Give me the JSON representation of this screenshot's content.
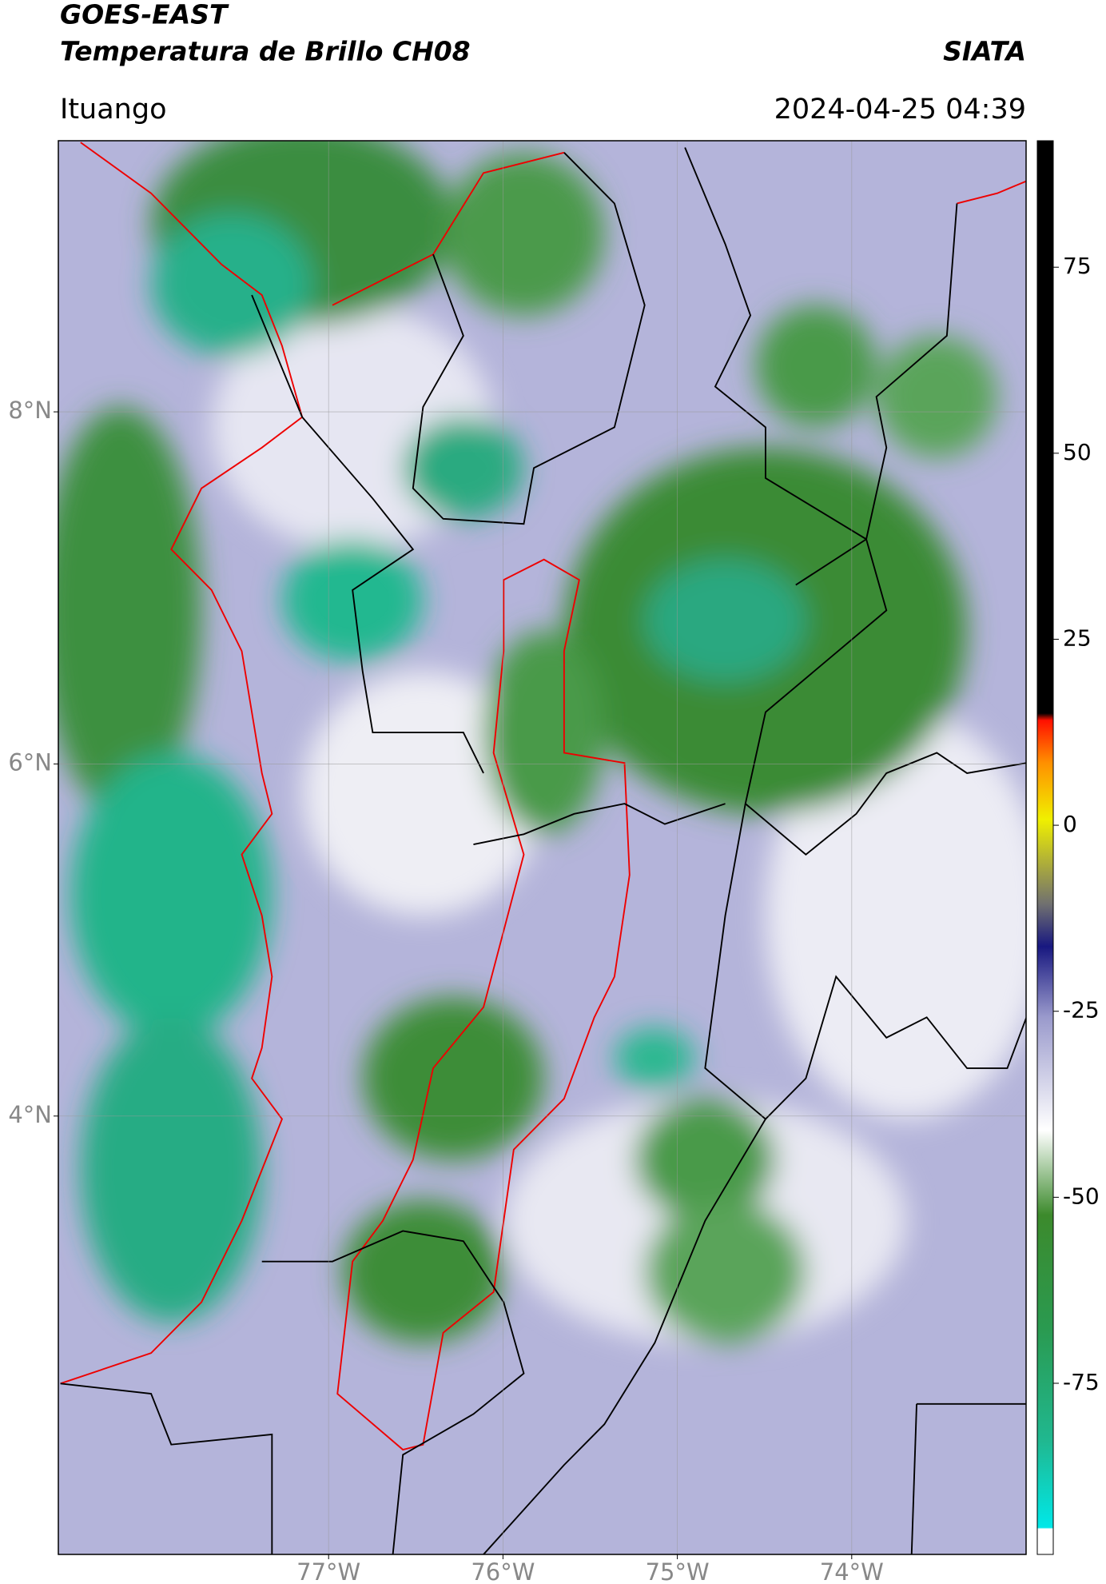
{
  "header": {
    "title": "GOES-EAST",
    "subtitle": "Temperatura de Brillo CH08",
    "source": "SIATA",
    "location": "Ituango",
    "datetime": "2024-04-25 04:39"
  },
  "map": {
    "lonlim": [
      -78.55,
      -73.0
    ],
    "latlim": [
      1.51,
      9.54
    ],
    "xticks": [
      {
        "value": -77,
        "label": "77°W"
      },
      {
        "value": -76,
        "label": "76°W"
      },
      {
        "value": -75,
        "label": "75°W"
      },
      {
        "value": -74,
        "label": "74°W"
      }
    ],
    "yticks": [
      {
        "value": 8,
        "label": "8°N"
      },
      {
        "value": 6,
        "label": "6°N"
      },
      {
        "value": 4,
        "label": "4°N"
      }
    ],
    "grid": true
  },
  "colorbar": {
    "lim": [
      -98,
      92
    ],
    "ticks": [
      75,
      50,
      25,
      0,
      -25,
      -50,
      -75
    ]
  }
}
